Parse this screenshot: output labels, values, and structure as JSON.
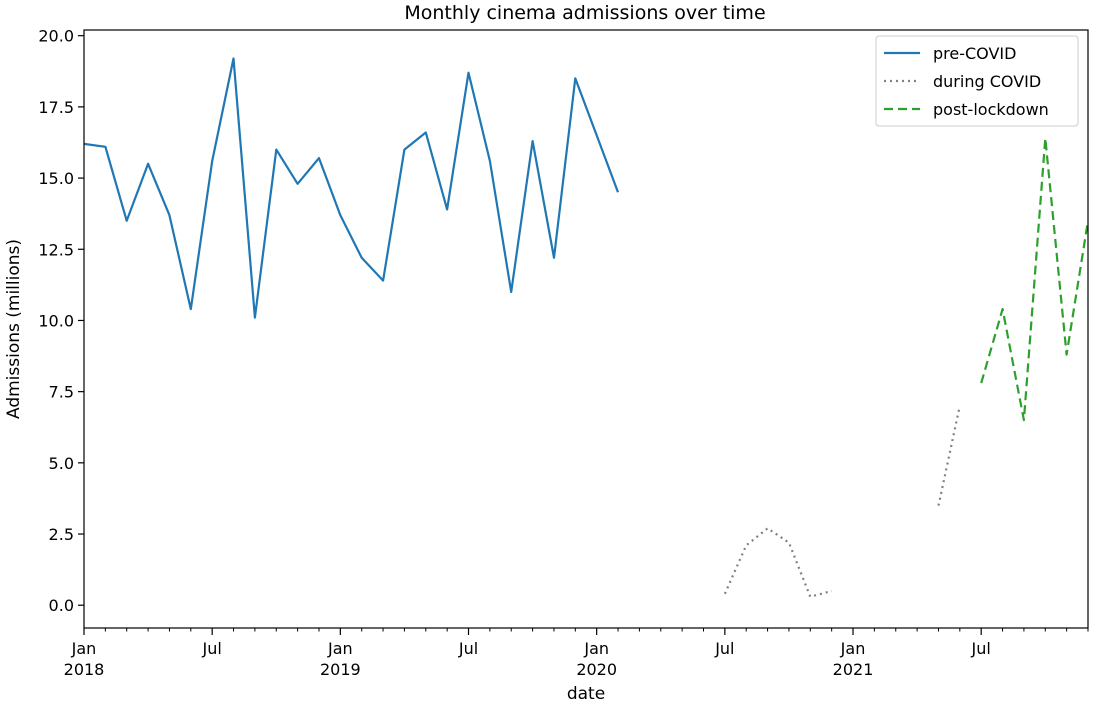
{
  "chart_data": {
    "type": "line",
    "title": "Monthly cinema admissions over time",
    "xlabel": "date",
    "ylabel": "Admissions (millions)",
    "xlim": [
      "2018-01",
      "2021-12"
    ],
    "ylim": [
      -0.8,
      20.2
    ],
    "yticks": [
      0.0,
      2.5,
      5.0,
      7.5,
      10.0,
      12.5,
      15.0,
      17.5,
      20.0
    ],
    "ytick_labels": [
      "0.0",
      "2.5",
      "5.0",
      "7.5",
      "10.0",
      "12.5",
      "15.0",
      "17.5",
      "20.0"
    ],
    "xticks": [
      {
        "date": "2018-01",
        "label": "Jan",
        "year": "2018"
      },
      {
        "date": "2018-07",
        "label": "Jul",
        "year": ""
      },
      {
        "date": "2019-01",
        "label": "Jan",
        "year": "2019"
      },
      {
        "date": "2019-07",
        "label": "Jul",
        "year": ""
      },
      {
        "date": "2020-01",
        "label": "Jan",
        "year": "2020"
      },
      {
        "date": "2020-07",
        "label": "Jul",
        "year": ""
      },
      {
        "date": "2021-01",
        "label": "Jan",
        "year": "2021"
      },
      {
        "date": "2021-07",
        "label": "Jul",
        "year": ""
      }
    ],
    "grid": false,
    "legend_position": "top-right",
    "series": [
      {
        "name": "pre-COVID",
        "color": "#1f77b4",
        "style": "solid",
        "x": [
          "2018-01",
          "2018-02",
          "2018-03",
          "2018-04",
          "2018-05",
          "2018-06",
          "2018-07",
          "2018-08",
          "2018-09",
          "2018-10",
          "2018-11",
          "2018-12",
          "2019-01",
          "2019-02",
          "2019-03",
          "2019-04",
          "2019-05",
          "2019-06",
          "2019-07",
          "2019-08",
          "2019-09",
          "2019-10",
          "2019-11",
          "2019-12",
          "2020-01",
          "2020-02"
        ],
        "y": [
          16.2,
          16.1,
          13.5,
          15.5,
          13.7,
          10.4,
          15.6,
          19.2,
          10.1,
          16.0,
          14.8,
          15.7,
          13.7,
          12.2,
          11.4,
          16.0,
          16.6,
          13.9,
          18.7,
          15.6,
          11.0,
          16.3,
          12.2,
          18.5,
          16.5,
          14.5
        ]
      },
      {
        "name": "during COVID",
        "color": "#808080",
        "style": "dotted",
        "segments": [
          {
            "x": [
              "2020-07",
              "2020-08",
              "2020-09",
              "2020-10",
              "2020-11",
              "2020-12"
            ],
            "y": [
              0.4,
              2.1,
              2.7,
              2.2,
              0.3,
              0.5
            ]
          },
          {
            "x": [
              "2021-05",
              "2021-06"
            ],
            "y": [
              3.5,
              7.0
            ]
          }
        ]
      },
      {
        "name": "post-lockdown",
        "color": "#2ca02c",
        "style": "dashed",
        "x": [
          "2021-07",
          "2021-08",
          "2021-09",
          "2021-10",
          "2021-11",
          "2021-12"
        ],
        "y": [
          7.8,
          10.4,
          6.5,
          16.4,
          8.8,
          13.5
        ]
      }
    ]
  }
}
